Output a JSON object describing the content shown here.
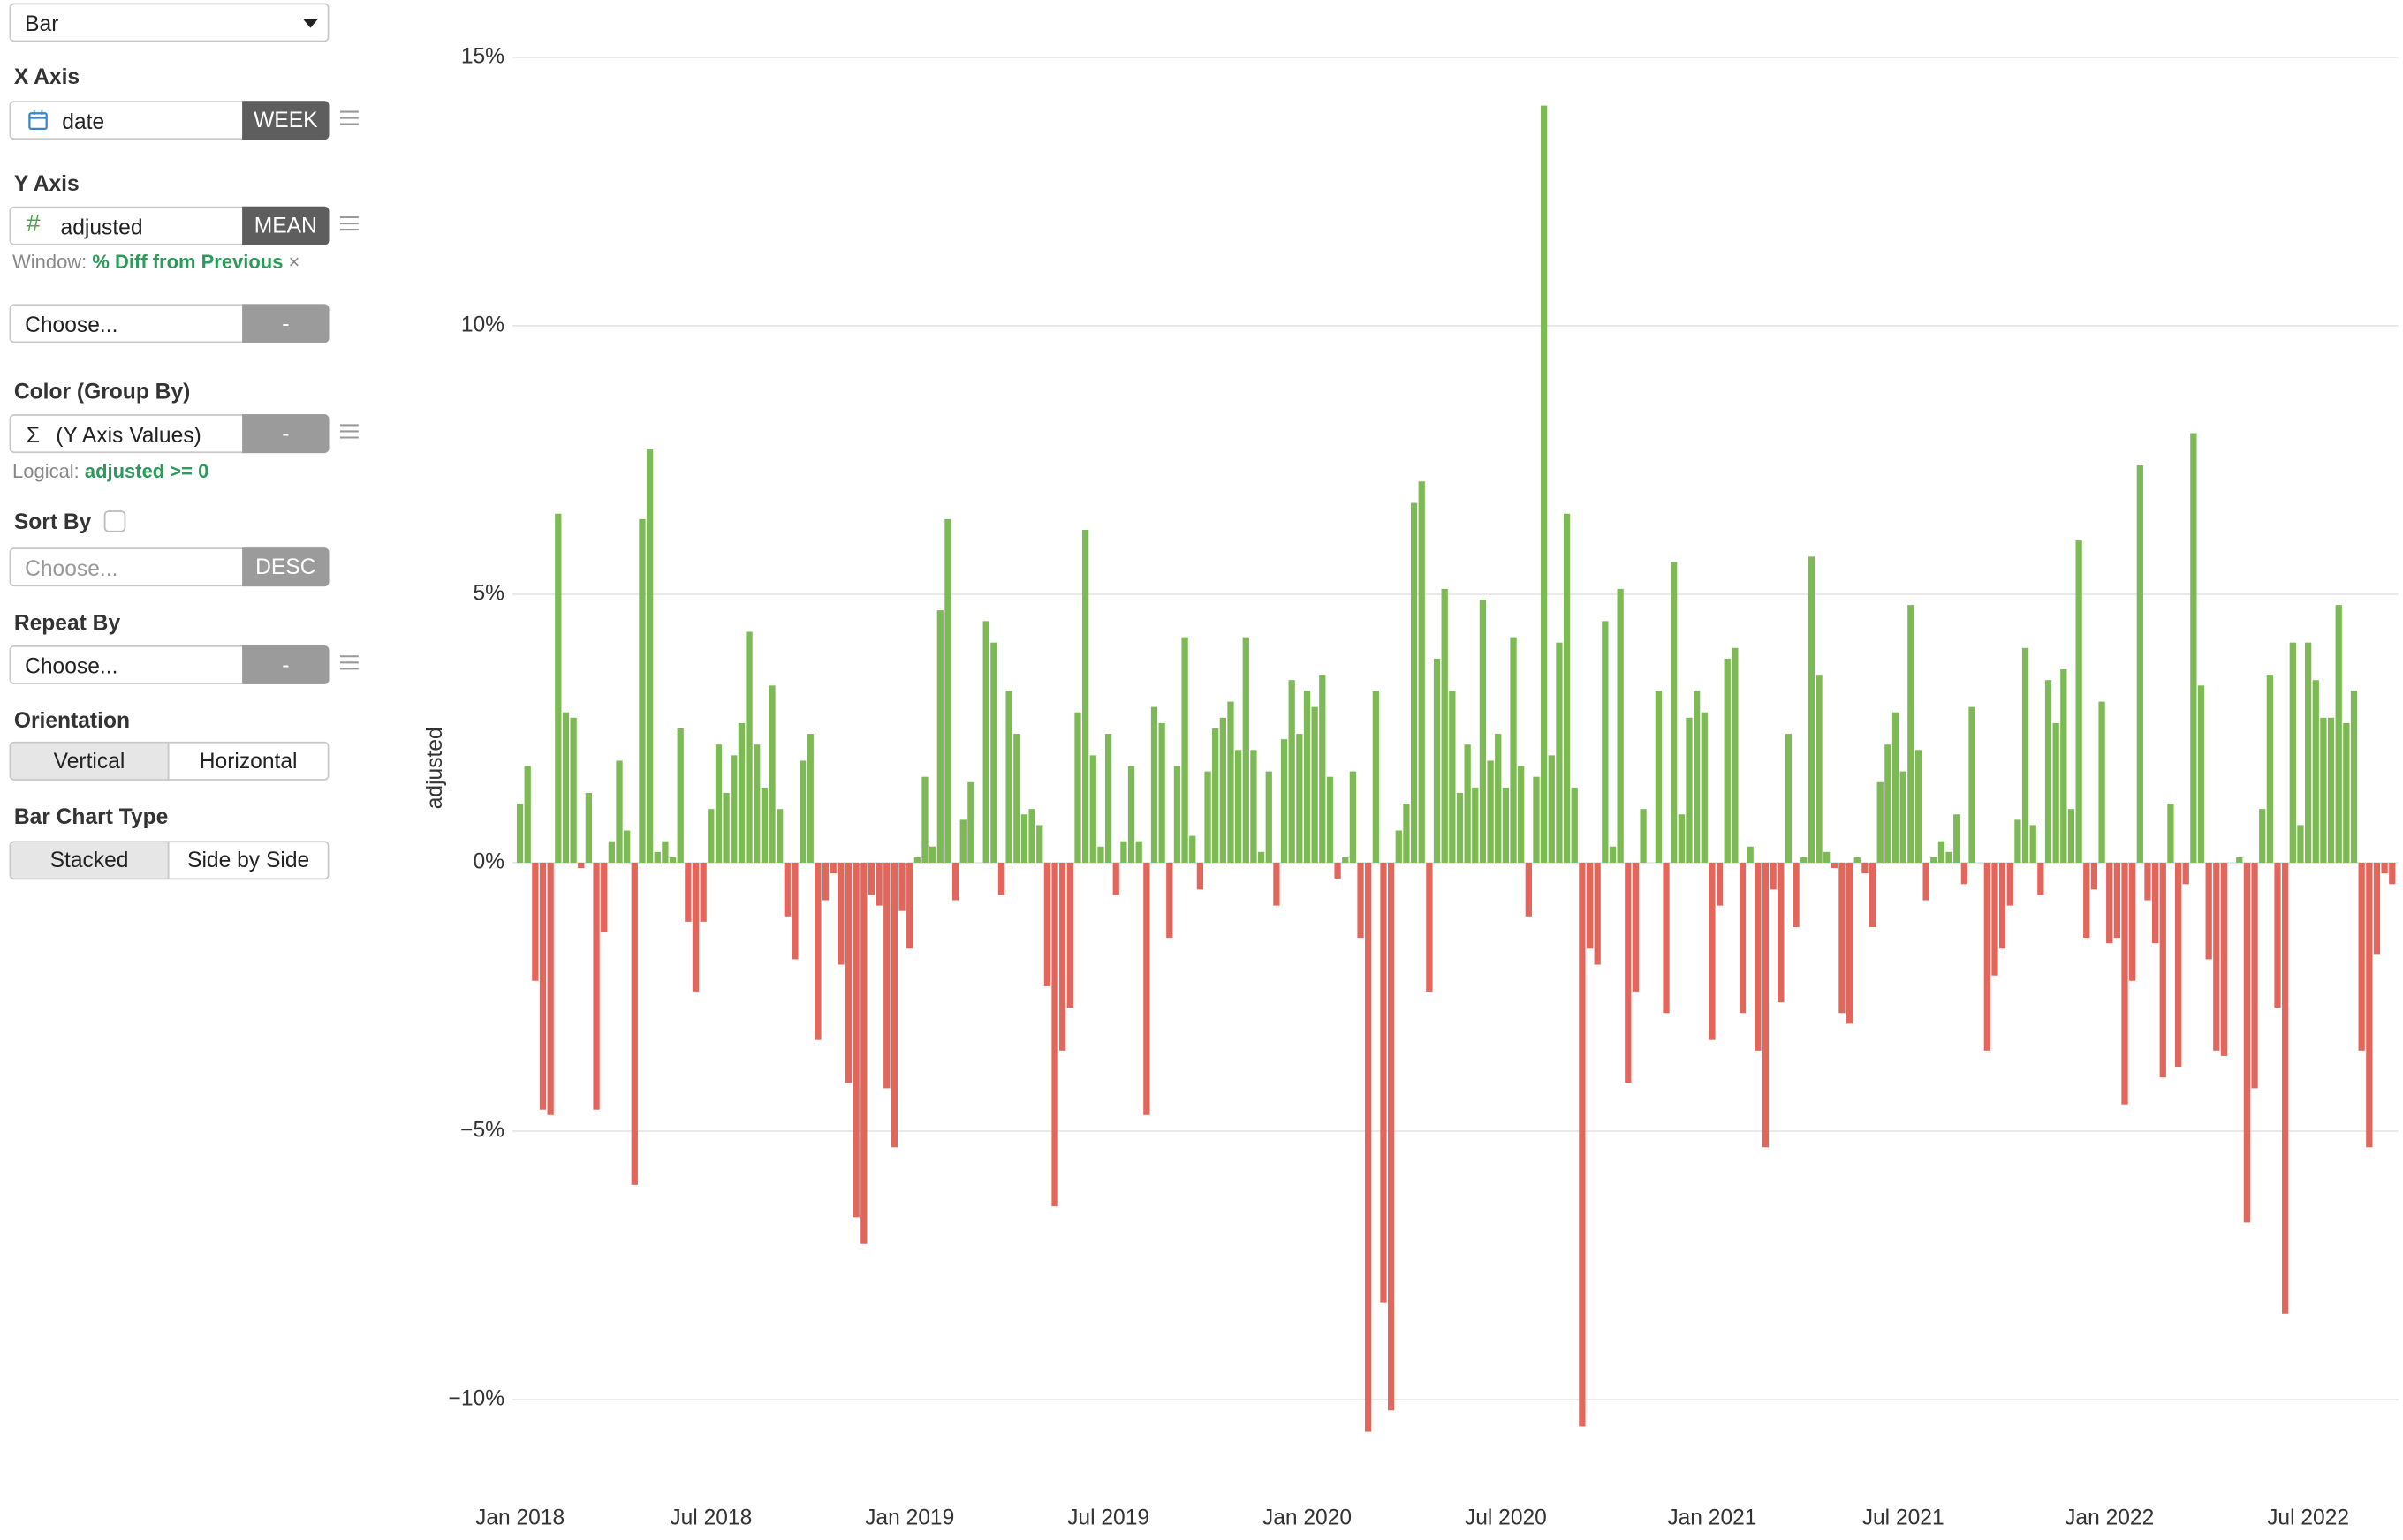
{
  "sidebar": {
    "chart_type": "Bar",
    "x_axis": {
      "label": "X Axis",
      "field": "date",
      "aggregation": "WEEK"
    },
    "y_axis": {
      "label": "Y Axis",
      "icon": "#",
      "field": "adjusted",
      "aggregation": "MEAN",
      "window_label": "Window:",
      "window_value": "% Diff from Previous",
      "window_remove": "×"
    },
    "extra_y": {
      "placeholder": "Choose...",
      "button": "-"
    },
    "color": {
      "label": "Color (Group By)",
      "icon": "Σ",
      "field": "(Y Axis Values)",
      "button": "-",
      "logical_label": "Logical:",
      "logical_value": "adjusted >= 0"
    },
    "sort": {
      "label": "Sort By",
      "placeholder": "Choose...",
      "button": "DESC"
    },
    "repeat": {
      "label": "Repeat By",
      "placeholder": "Choose...",
      "button": "-"
    },
    "orientation": {
      "label": "Orientation",
      "options": [
        "Vertical",
        "Horizontal"
      ]
    },
    "bar_type": {
      "label": "Bar Chart Type",
      "options": [
        "Stacked",
        "Side by Side"
      ]
    }
  },
  "chart_data": {
    "type": "bar",
    "y_label": "adjusted",
    "color_positive": "#7db954",
    "color_negative": "#e2665b",
    "grid": true,
    "ylim": [
      -11.5,
      15.2
    ],
    "yticks": [
      {
        "value": -10,
        "label": "−10%"
      },
      {
        "value": -5,
        "label": "−5%"
      },
      {
        "value": 0,
        "label": "0%"
      },
      {
        "value": 5,
        "label": "5%"
      },
      {
        "value": 10,
        "label": "10%"
      },
      {
        "value": 15,
        "label": "15%"
      }
    ],
    "categories": [
      "Jan 2018",
      null,
      null,
      null,
      null,
      null,
      null,
      null,
      null,
      null,
      null,
      null,
      null,
      null,
      null,
      null,
      null,
      null,
      null,
      null,
      null,
      null,
      null,
      null,
      null,
      "Jul 2018",
      null,
      null,
      null,
      null,
      null,
      null,
      null,
      null,
      null,
      null,
      null,
      null,
      null,
      null,
      null,
      null,
      null,
      null,
      null,
      null,
      null,
      null,
      null,
      null,
      null,
      "Jan 2019",
      null,
      null,
      null,
      null,
      null,
      null,
      null,
      null,
      null,
      null,
      null,
      null,
      null,
      null,
      null,
      null,
      null,
      null,
      null,
      null,
      null,
      null,
      null,
      null,
      null,
      "Jul 2019",
      null,
      null,
      null,
      null,
      null,
      null,
      null,
      null,
      null,
      null,
      null,
      null,
      null,
      null,
      null,
      null,
      null,
      null,
      null,
      null,
      null,
      null,
      null,
      null,
      null,
      "Jan 2020",
      null,
      null,
      null,
      null,
      null,
      null,
      null,
      null,
      null,
      null,
      null,
      null,
      null,
      null,
      null,
      null,
      null,
      null,
      null,
      null,
      null,
      null,
      null,
      null,
      null,
      "Jul 2020",
      null,
      null,
      null,
      null,
      null,
      null,
      null,
      null,
      null,
      null,
      null,
      null,
      null,
      null,
      null,
      null,
      null,
      null,
      null,
      null,
      null,
      null,
      null,
      null,
      null,
      null,
      "Jan 2021",
      null,
      null,
      null,
      null,
      null,
      null,
      null,
      null,
      null,
      null,
      null,
      null,
      null,
      null,
      null,
      null,
      null,
      null,
      null,
      null,
      null,
      null,
      null,
      null,
      "Jul 2021",
      null,
      null,
      null,
      null,
      null,
      null,
      null,
      null,
      null,
      null,
      null,
      null,
      null,
      null,
      null,
      null,
      null,
      null,
      null,
      null,
      null,
      null,
      null,
      null,
      null,
      null,
      "Jan 2022",
      null,
      null,
      null,
      null,
      null,
      null,
      null,
      null,
      null,
      null,
      null,
      null,
      null,
      null,
      null,
      null,
      null,
      null,
      null,
      null,
      null,
      null,
      null,
      null,
      null,
      "Jul 2022",
      null,
      null,
      null,
      null,
      null,
      null,
      null,
      null,
      null,
      null,
      null
    ],
    "values": [
      1.1,
      1.8,
      -2.2,
      -4.6,
      -4.7,
      6.5,
      2.8,
      2.7,
      -0.1,
      1.3,
      -4.6,
      -1.3,
      0.4,
      1.9,
      0.6,
      -6.0,
      6.4,
      7.7,
      0.2,
      0.4,
      0.1,
      2.5,
      -1.1,
      -2.4,
      -1.1,
      1.0,
      2.2,
      1.3,
      2.0,
      2.6,
      4.3,
      2.2,
      1.4,
      3.3,
      1.0,
      -1.0,
      -1.8,
      1.9,
      2.4,
      -3.3,
      -0.7,
      -0.2,
      -1.9,
      -4.1,
      -6.6,
      -7.1,
      -0.6,
      -0.8,
      -4.2,
      -5.3,
      -0.9,
      -1.6,
      0.1,
      1.6,
      0.3,
      4.7,
      6.4,
      -0.7,
      0.8,
      1.5,
      0.0,
      4.5,
      4.1,
      -0.6,
      3.2,
      2.4,
      0.9,
      1.0,
      0.7,
      -2.3,
      -6.4,
      -3.5,
      -2.7,
      2.8,
      6.2,
      2.0,
      0.3,
      2.4,
      -0.6,
      0.4,
      1.8,
      0.4,
      -4.7,
      2.9,
      2.6,
      -1.4,
      1.8,
      4.2,
      0.5,
      -0.5,
      1.7,
      2.5,
      2.7,
      3.0,
      2.1,
      4.2,
      2.1,
      0.2,
      1.7,
      -0.8,
      2.3,
      3.4,
      2.4,
      3.2,
      2.9,
      3.5,
      1.6,
      -0.3,
      0.1,
      1.7,
      -1.4,
      -10.6,
      3.2,
      -8.2,
      -10.2,
      0.6,
      1.1,
      6.7,
      7.1,
      -2.4,
      3.8,
      5.1,
      3.2,
      1.3,
      2.2,
      1.4,
      4.9,
      1.9,
      2.4,
      1.4,
      4.2,
      1.8,
      -1.0,
      1.6,
      14.1,
      2.0,
      4.1,
      6.5,
      1.4,
      -10.5,
      -1.6,
      -1.9,
      4.5,
      0.3,
      5.1,
      -4.1,
      -2.4,
      1.0,
      0.0,
      3.2,
      -2.8,
      5.6,
      0.9,
      2.7,
      3.2,
      2.8,
      -3.3,
      -0.8,
      3.8,
      4.0,
      -2.8,
      0.3,
      -3.5,
      -5.3,
      -0.5,
      -2.6,
      2.4,
      -1.2,
      0.1,
      5.7,
      3.5,
      0.2,
      -0.1,
      -2.8,
      -3.0,
      0.1,
      -0.2,
      -1.2,
      1.5,
      2.2,
      2.8,
      1.7,
      4.8,
      2.1,
      -0.7,
      0.1,
      0.4,
      0.2,
      0.9,
      -0.4,
      2.9,
      0.0,
      -3.5,
      -2.1,
      -1.6,
      -0.8,
      0.8,
      4.0,
      0.7,
      -0.6,
      3.4,
      2.6,
      3.6,
      1.0,
      6.0,
      -1.4,
      -0.5,
      3.0,
      -1.5,
      -1.4,
      -4.5,
      -2.2,
      7.4,
      -0.7,
      -1.5,
      -4.0,
      1.1,
      -3.8,
      -0.4,
      8.0,
      3.3,
      -1.8,
      -3.5,
      -3.6,
      0.0,
      0.1,
      -6.7,
      -4.2,
      1.0,
      3.5,
      -2.7,
      -8.4,
      4.1,
      0.7,
      4.1,
      3.4,
      2.7,
      2.7,
      4.8,
      2.6,
      3.2,
      -3.5,
      -5.3,
      -1.7,
      -0.2,
      -0.4
    ]
  }
}
